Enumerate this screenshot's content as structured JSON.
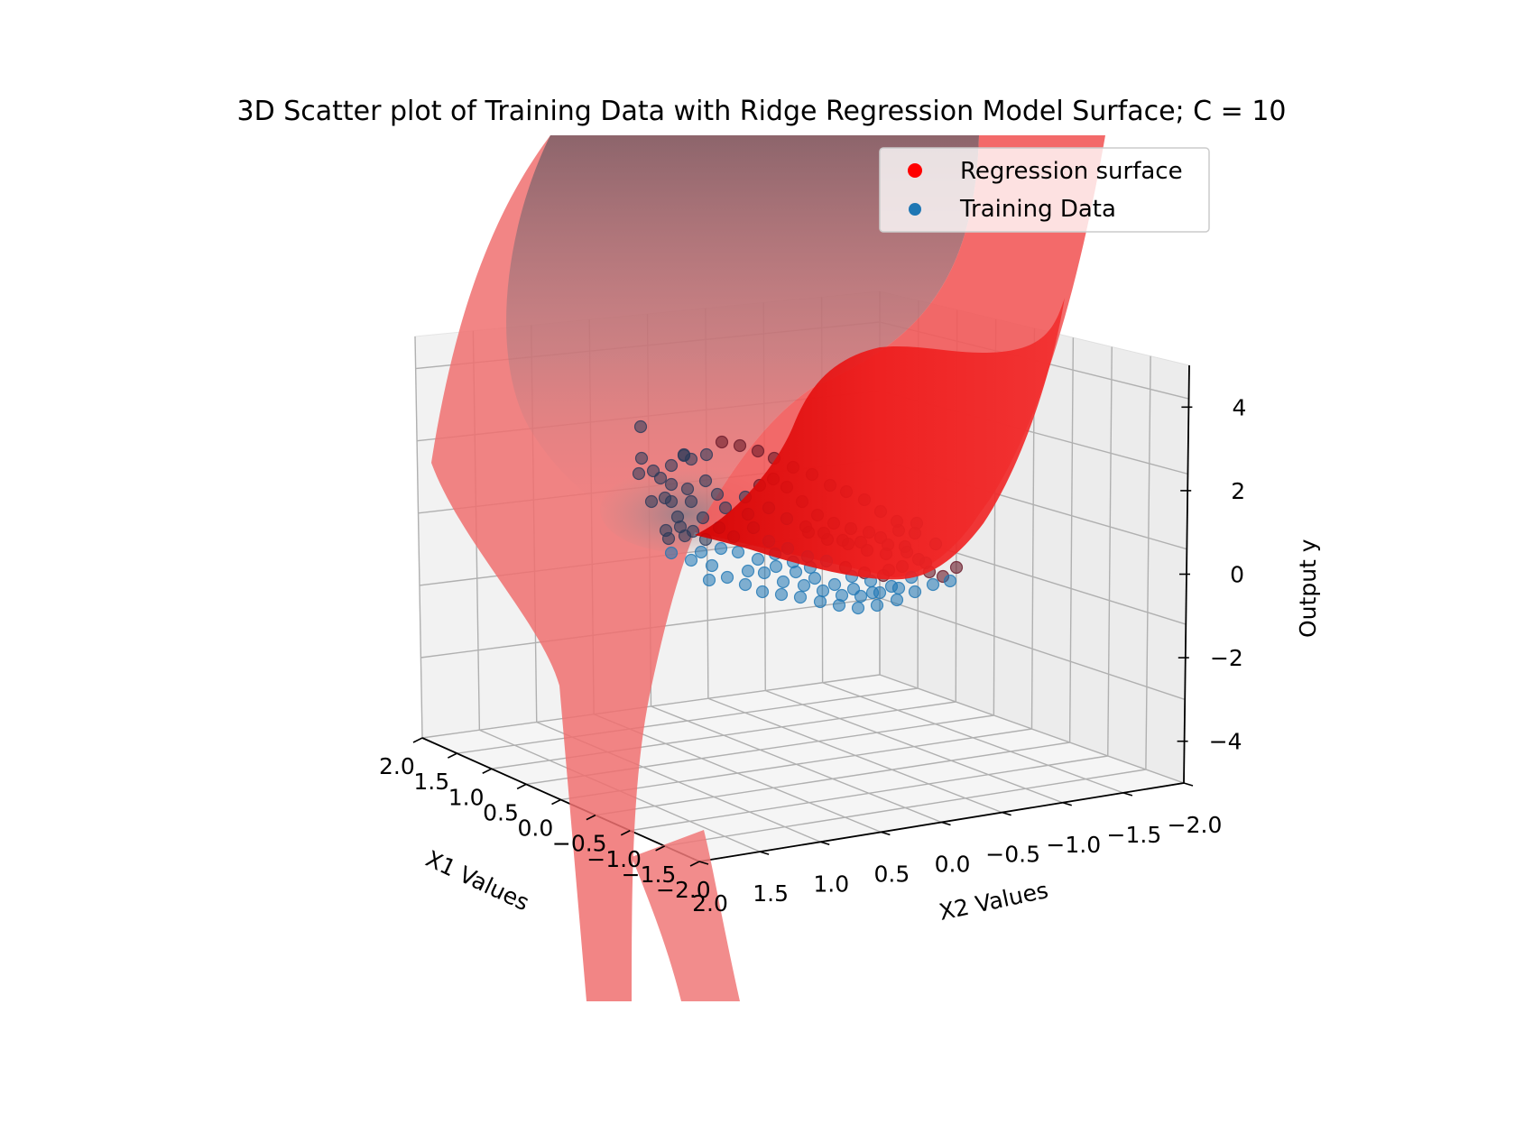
{
  "chart_data": {
    "type": "scatter",
    "projection": "3d",
    "title": "3D Scatter plot of Training Data with Ridge Regression Model Surface; C = 10",
    "xlabel": "X1 Values",
    "ylabel": "X2 Values",
    "zlabel": "Output y",
    "x_ticks": [
      "2.0",
      "1.5",
      "1.0",
      "0.5",
      "0.0",
      "−0.5",
      "−1.0",
      "−1.5",
      "−2.0"
    ],
    "y_ticks": [
      "2.0",
      "1.5",
      "1.0",
      "0.5",
      "0.0",
      "−0.5",
      "−1.0",
      "−1.5",
      "−2.0"
    ],
    "z_ticks": [
      "4",
      "2",
      "0",
      "−2",
      "−4"
    ],
    "xlim": [
      -2,
      2
    ],
    "ylim": [
      -2,
      2
    ],
    "zlim": [
      -5,
      5
    ],
    "grid": true,
    "legend_position": "top-right",
    "series": [
      {
        "name": "Regression surface",
        "color": "#ff0000",
        "kind": "surface"
      },
      {
        "name": "Training Data",
        "color": "#1f77b4",
        "kind": "scatter"
      }
    ]
  }
}
